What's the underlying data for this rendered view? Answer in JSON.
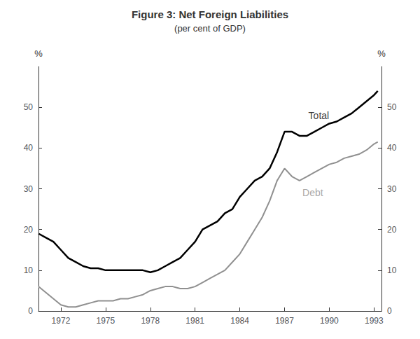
{
  "chart_data": {
    "type": "line",
    "title": "Figure 3: Net Foreign Liabilities",
    "subtitle": "(per cent of GDP)",
    "ylabel": "%",
    "y2label": "%",
    "x": [
      1970.5,
      1971,
      1971.5,
      1972,
      1972.5,
      1973,
      1973.5,
      1974,
      1974.5,
      1975,
      1975.5,
      1976,
      1976.5,
      1977,
      1977.5,
      1978,
      1978.5,
      1979,
      1979.5,
      1980,
      1980.5,
      1981,
      1981.5,
      1982,
      1982.5,
      1983,
      1983.5,
      1984,
      1984.5,
      1985,
      1985.5,
      1986,
      1986.5,
      1987,
      1987.5,
      1988,
      1988.5,
      1989,
      1989.5,
      1990,
      1990.5,
      1991,
      1991.5,
      1992,
      1992.5,
      1993,
      1993.25
    ],
    "series": [
      {
        "color": "#000000",
        "values": [
          19,
          18,
          17,
          15,
          13,
          12,
          11,
          10.5,
          10.5,
          10,
          10,
          10,
          10,
          10,
          10,
          9.5,
          10,
          11,
          12,
          13,
          15,
          17,
          20,
          21,
          22,
          24,
          25,
          28,
          30,
          32,
          33,
          35,
          39,
          44,
          44,
          43,
          43,
          44,
          45,
          46,
          46.5,
          47.5,
          48.5,
          50,
          51.5,
          53,
          54
        ]
      },
      {
        "color": "#909090",
        "values": [
          6,
          4.5,
          3,
          1.5,
          1,
          1,
          1.5,
          2,
          2.5,
          2.5,
          2.5,
          3,
          3,
          3.5,
          4,
          5,
          5.5,
          6,
          6,
          5.5,
          5.5,
          6,
          7,
          8,
          9,
          10,
          12,
          14,
          17,
          20,
          23,
          27,
          32,
          35,
          33,
          32,
          33,
          34,
          35,
          36,
          36.5,
          37.5,
          38,
          38.5,
          39.5,
          41,
          41.5
        ]
      }
    ],
    "annotations": [
      {
        "text": "Total",
        "x": 1988.6,
        "y": 46.5,
        "color": "#000000"
      },
      {
        "text": "Debt",
        "x": 1988.2,
        "y": 27.5,
        "color": "#909090"
      }
    ],
    "xlim": [
      1970.5,
      1993.5
    ],
    "xticks": [
      1972,
      1975,
      1978,
      1981,
      1984,
      1987,
      1990,
      1993
    ],
    "ylim": [
      0,
      60
    ],
    "yticks": [
      0,
      10,
      20,
      30,
      40,
      50
    ],
    "y2lim": [
      0,
      60
    ],
    "y2ticks": [
      0,
      10,
      20,
      30,
      40,
      50
    ],
    "grid": false
  }
}
